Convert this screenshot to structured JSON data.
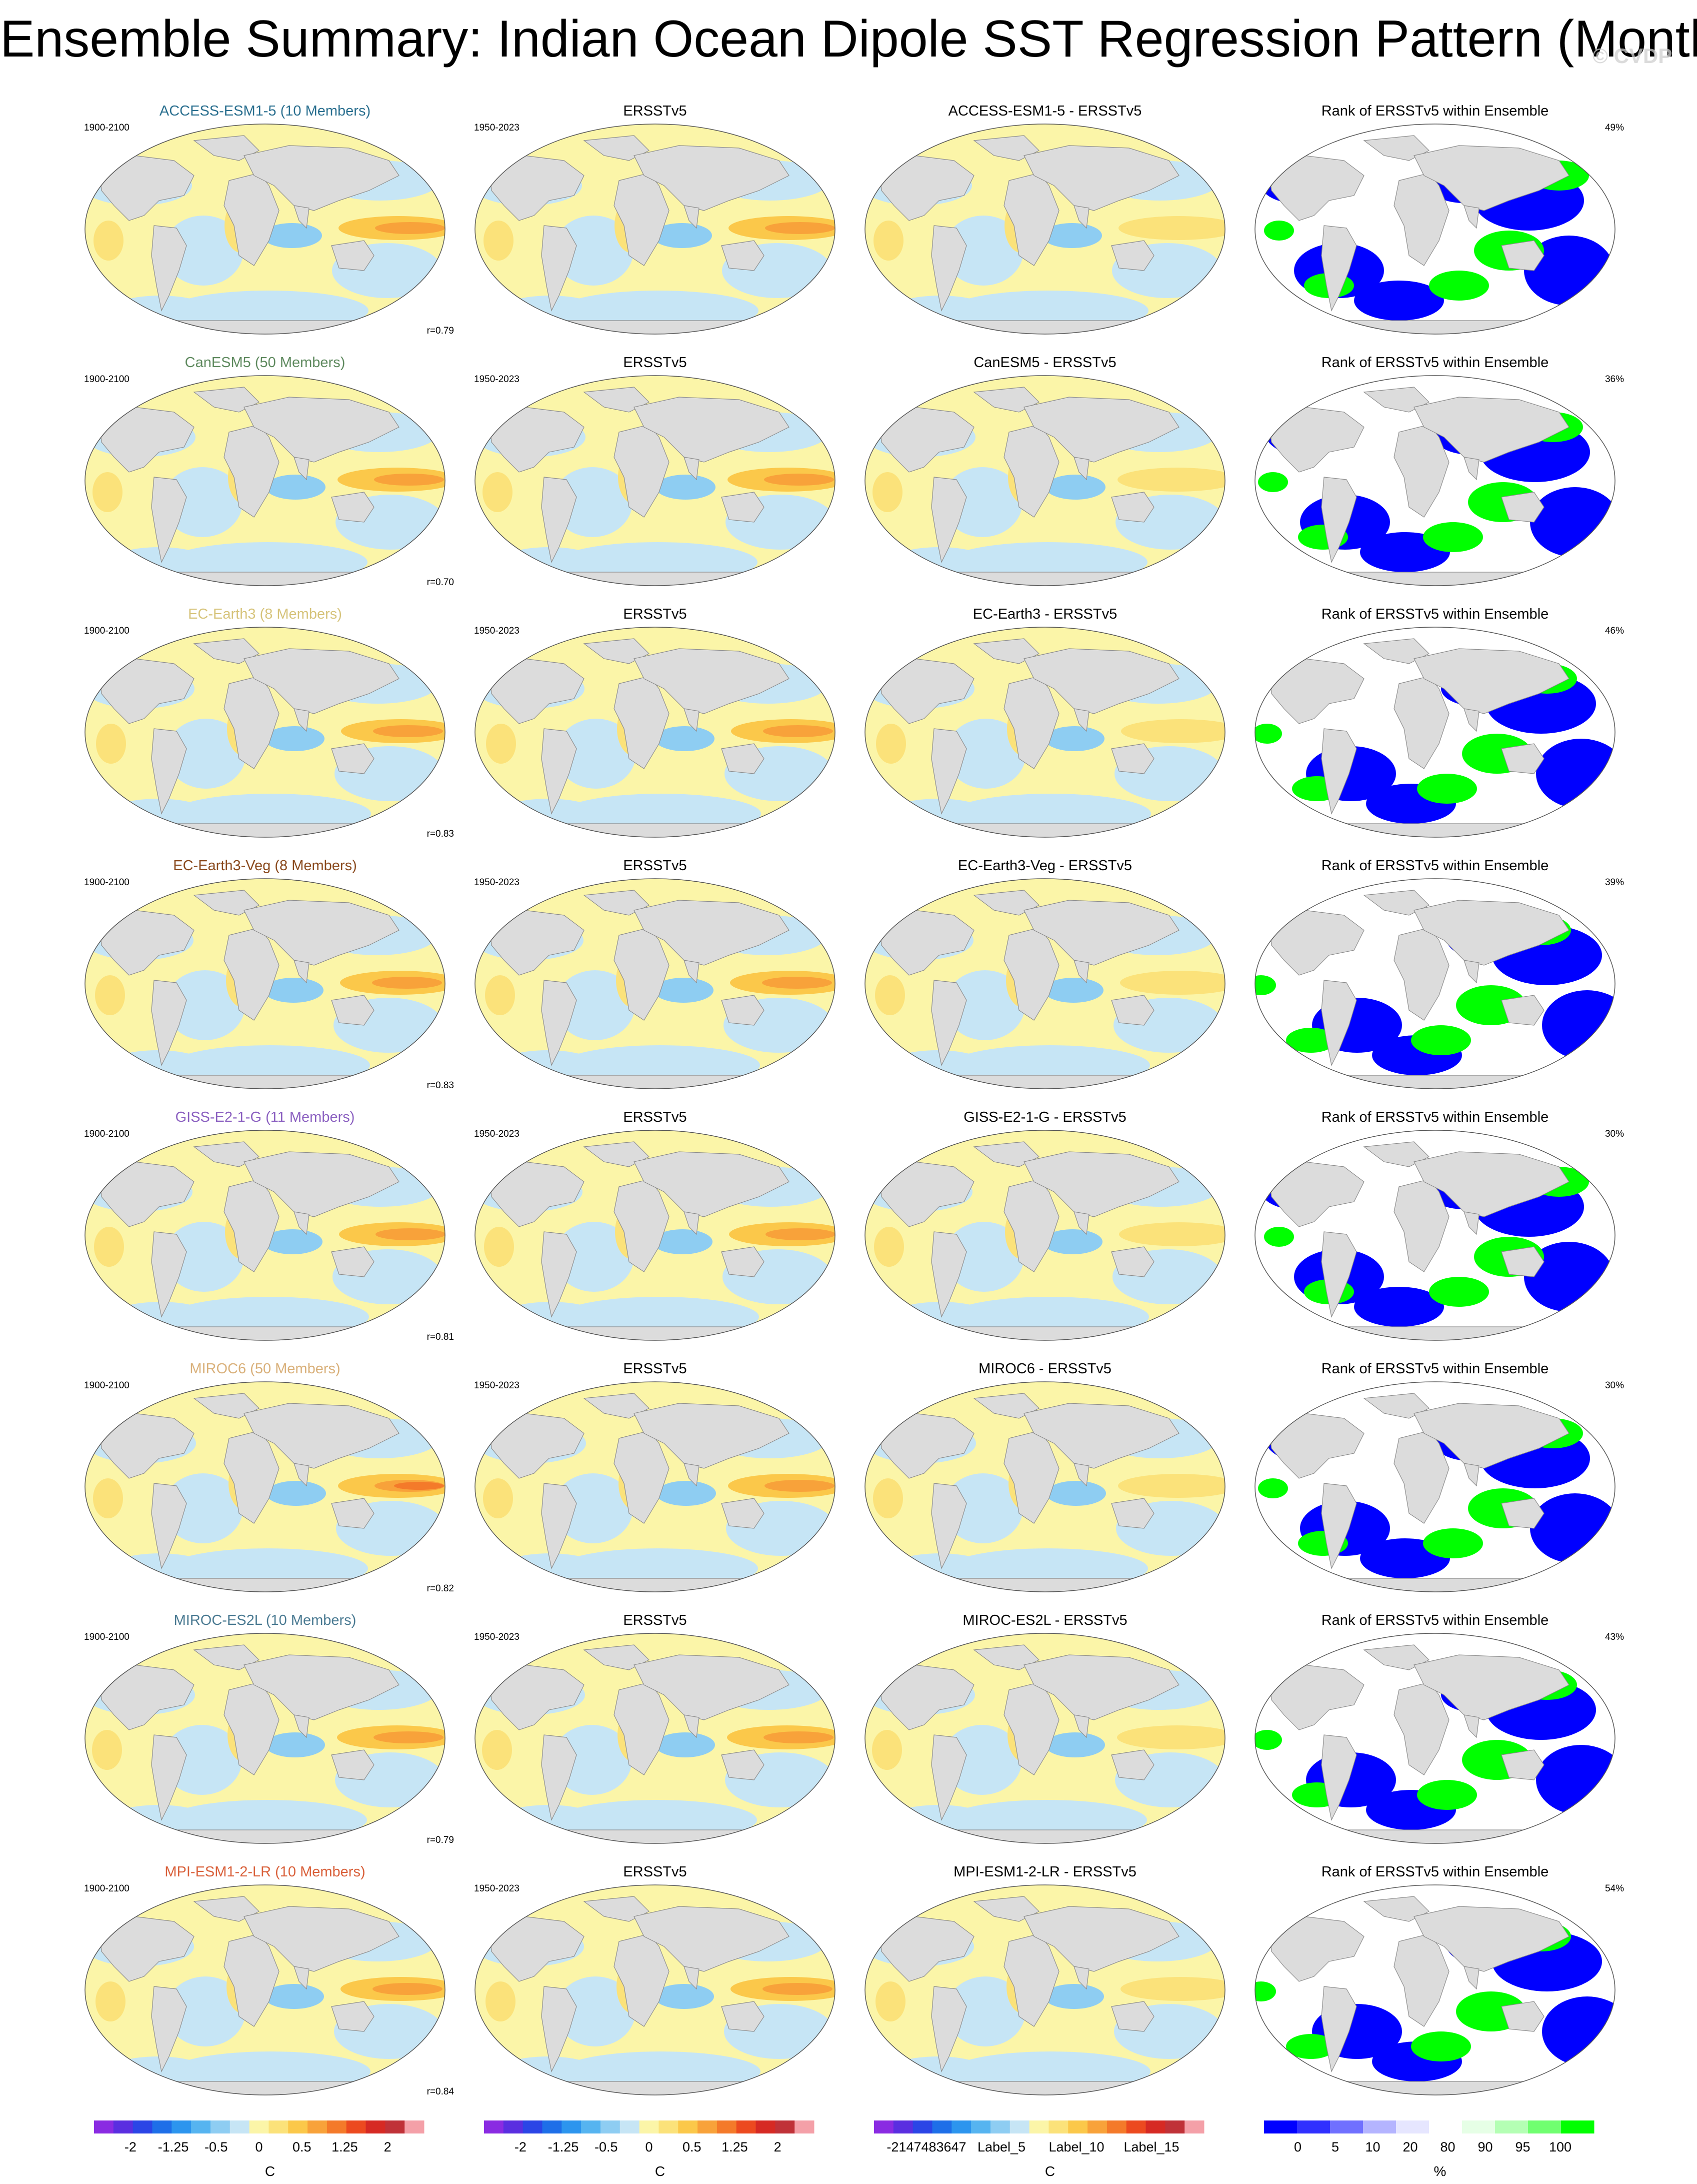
{
  "title": "Ensemble Summary: Indian Ocean Dipole SST Regression Pattern (Monthly)",
  "watermark": "© CVDP",
  "columns": [
    "model",
    "observation",
    "difference",
    "rank"
  ],
  "observation_label": "ERSSTv5",
  "rank_title": "Rank of ERSSTv5 within Ensemble",
  "model_period": "1900-2100",
  "obs_period": "1950-2023",
  "rows": [
    {
      "model": "ACCESS-ESM1-5",
      "model_title": "ACCESS-ESM1-5 (10 Members)",
      "title_color": "#2a6f8f",
      "diff_title": "ACCESS-ESM1-5 - ERSSTv5",
      "pattern_corr": "r=0.79",
      "rank_pct": "49%"
    },
    {
      "model": "CanESM5",
      "model_title": "CanESM5 (50 Members)",
      "title_color": "#5f8a5f",
      "diff_title": "CanESM5 - ERSSTv5",
      "pattern_corr": "r=0.70",
      "rank_pct": "36%"
    },
    {
      "model": "EC-Earth3",
      "model_title": "EC-Earth3 (8 Members)",
      "title_color": "#d6c37a",
      "diff_title": "EC-Earth3 - ERSSTv5",
      "pattern_corr": "r=0.83",
      "rank_pct": "46%"
    },
    {
      "model": "EC-Earth3-Veg",
      "model_title": "EC-Earth3-Veg (8 Members)",
      "title_color": "#8a4a1e",
      "diff_title": "EC-Earth3-Veg - ERSSTv5",
      "pattern_corr": "r=0.83",
      "rank_pct": "39%"
    },
    {
      "model": "GISS-E2-1-G",
      "model_title": "GISS-E2-1-G (11 Members)",
      "title_color": "#8a5fc0",
      "diff_title": "GISS-E2-1-G - ERSSTv5",
      "pattern_corr": "r=0.81",
      "rank_pct": "30%"
    },
    {
      "model": "MIROC6",
      "model_title": "MIROC6 (50 Members)",
      "title_color": "#d9b07a",
      "diff_title": "MIROC6 - ERSSTv5",
      "pattern_corr": "r=0.82",
      "rank_pct": "30%"
    },
    {
      "model": "MIROC-ES2L",
      "model_title": "MIROC-ES2L (10 Members)",
      "title_color": "#4a7a92",
      "diff_title": "MIROC-ES2L - ERSSTv5",
      "pattern_corr": "r=0.79",
      "rank_pct": "43%"
    },
    {
      "model": "MPI-ESM1-2-LR",
      "model_title": "MPI-ESM1-2-LR (10 Members)",
      "title_color": "#d9603a",
      "diff_title": "MPI-ESM1-2-LR - ERSSTv5",
      "pattern_corr": "r=0.84",
      "rank_pct": "54%"
    }
  ],
  "colorbars": [
    {
      "name": "model-colorbar",
      "unit": "C",
      "labels": [
        "-2",
        "-1.25",
        "-0.5",
        "0",
        "0.5",
        "1.25",
        "2"
      ],
      "colors": [
        "#8a2be2",
        "#5a2ee0",
        "#2b45e6",
        "#1e6fe8",
        "#2c95ee",
        "#56b4f0",
        "#8ecdf2",
        "#c6e5f5",
        "#fbf5a8",
        "#fbe27a",
        "#fbc84a",
        "#f8a23a",
        "#f47a2a",
        "#ec4a20",
        "#d62a24",
        "#c03238",
        "#f4a0a8"
      ]
    },
    {
      "name": "obs-colorbar",
      "unit": "C",
      "labels": [
        "-2",
        "-1.25",
        "-0.5",
        "0",
        "0.5",
        "1.25",
        "2"
      ],
      "colors": [
        "#8a2be2",
        "#5a2ee0",
        "#2b45e6",
        "#1e6fe8",
        "#2c95ee",
        "#56b4f0",
        "#8ecdf2",
        "#c6e5f5",
        "#fbf5a8",
        "#fbe27a",
        "#fbc84a",
        "#f8a23a",
        "#f47a2a",
        "#ec4a20",
        "#d62a24",
        "#c03238",
        "#f4a0a8"
      ]
    },
    {
      "name": "diff-colorbar",
      "unit": "C",
      "labels": [
        "-2147483647",
        "Label_5",
        "Label_10",
        "Label_15"
      ],
      "colors": [
        "#8a2be2",
        "#5a2ee0",
        "#2b45e6",
        "#1e6fe8",
        "#2c95ee",
        "#56b4f0",
        "#8ecdf2",
        "#c6e5f5",
        "#fbf5a8",
        "#fbe27a",
        "#fbc84a",
        "#f8a23a",
        "#f47a2a",
        "#ec4a20",
        "#d62a24",
        "#c03238",
        "#f4a0a8"
      ]
    },
    {
      "name": "rank-colorbar",
      "unit": "%",
      "labels": [
        "0",
        "5",
        "10",
        "20",
        "80",
        "90",
        "95",
        "100"
      ],
      "colors": [
        "#0000ff",
        "#3030ff",
        "#7070ff",
        "#b4b4ff",
        "#e6e6ff",
        "#ffffff",
        "#e6ffe6",
        "#b4ffb4",
        "#70ff70",
        "#00ff00"
      ]
    }
  ]
}
